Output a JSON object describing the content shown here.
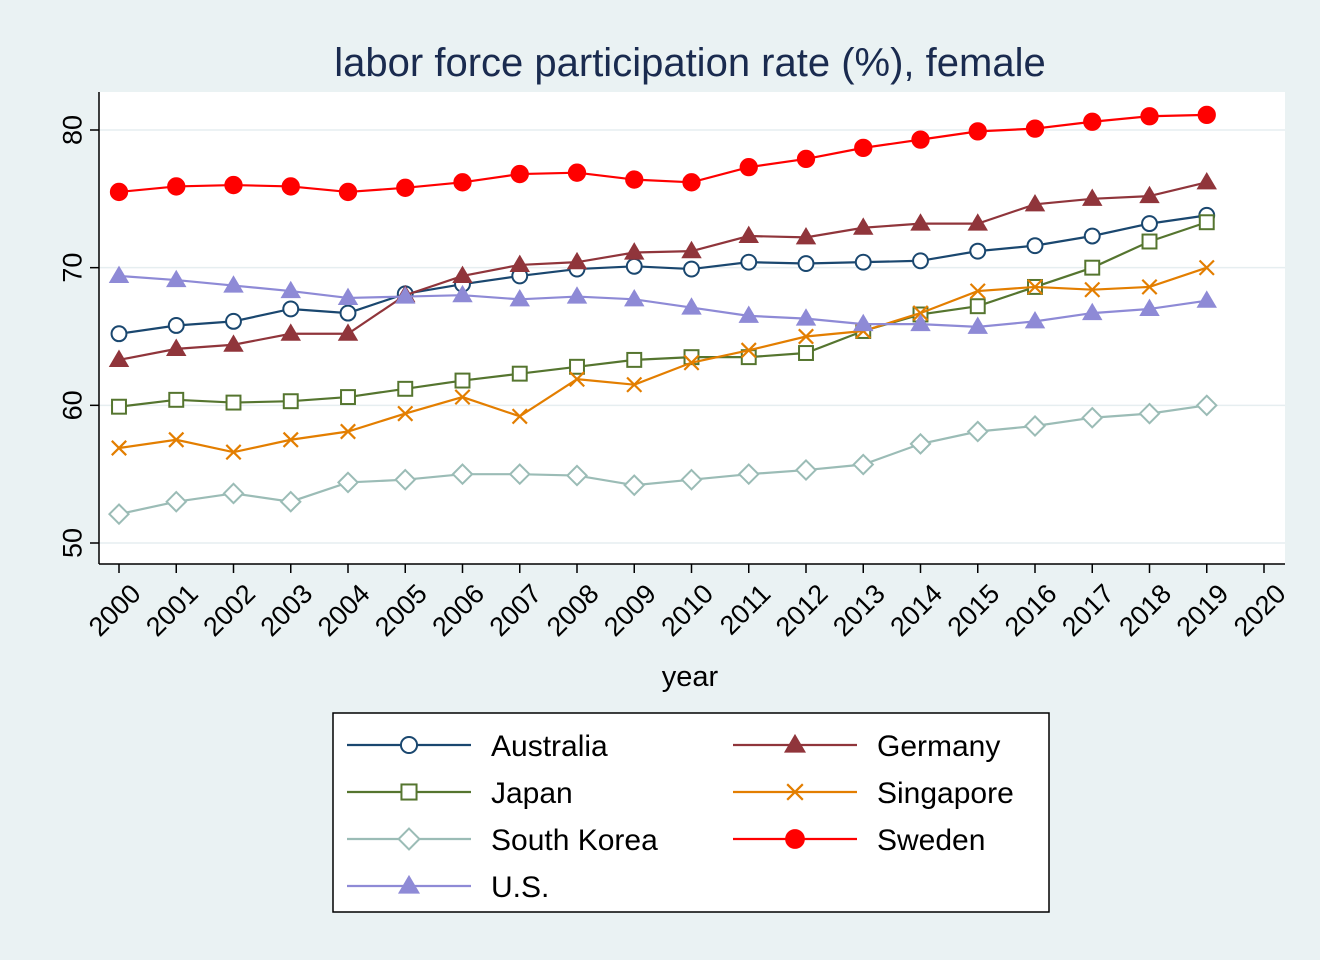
{
  "chart_data": {
    "type": "line",
    "title": "labor force participation rate (%), female",
    "xlabel": "year",
    "ylabel": "",
    "xlim": [
      2000,
      2020
    ],
    "ylim": [
      50,
      82
    ],
    "x_ticks": [
      "2000",
      "2001",
      "2002",
      "2003",
      "2004",
      "2005",
      "2006",
      "2007",
      "2008",
      "2009",
      "2010",
      "2011",
      "2012",
      "2013",
      "2014",
      "2015",
      "2016",
      "2017",
      "2018",
      "2019",
      "2020"
    ],
    "y_ticks": [
      "50",
      "60",
      "70",
      "80"
    ],
    "grid": true,
    "legend_position": "bottom",
    "x": [
      2000,
      2001,
      2002,
      2003,
      2004,
      2005,
      2006,
      2007,
      2008,
      2009,
      2010,
      2011,
      2012,
      2013,
      2014,
      2015,
      2016,
      2017,
      2018,
      2019
    ],
    "series": [
      {
        "name": "Australia",
        "color": "#1a476f",
        "marker": "circle-hollow",
        "values": [
          65.2,
          65.8,
          66.1,
          67.0,
          66.7,
          68.1,
          68.8,
          69.4,
          69.9,
          70.1,
          69.9,
          70.4,
          70.3,
          70.4,
          70.5,
          71.2,
          71.6,
          72.3,
          73.2,
          73.8
        ]
      },
      {
        "name": "Germany",
        "color": "#90353b",
        "marker": "triangle-filled",
        "values": [
          63.3,
          64.1,
          64.4,
          65.2,
          65.2,
          68.0,
          69.4,
          70.2,
          70.4,
          71.1,
          71.2,
          72.3,
          72.2,
          72.9,
          73.2,
          73.2,
          74.6,
          75.0,
          75.2,
          76.2
        ]
      },
      {
        "name": "Japan",
        "color": "#55752f",
        "marker": "square-hollow",
        "values": [
          59.9,
          60.4,
          60.2,
          60.3,
          60.6,
          61.2,
          61.8,
          62.3,
          62.8,
          63.3,
          63.5,
          63.5,
          63.8,
          65.4,
          66.6,
          67.2,
          68.6,
          70.0,
          71.9,
          73.3
        ]
      },
      {
        "name": "Singapore",
        "color": "#e37e00",
        "marker": "x",
        "values": [
          56.9,
          57.5,
          56.6,
          57.5,
          58.1,
          59.4,
          60.6,
          59.2,
          61.9,
          61.5,
          63.1,
          64.0,
          65.0,
          65.4,
          66.7,
          68.3,
          68.6,
          68.4,
          68.6,
          70.0
        ]
      },
      {
        "name": "South Korea",
        "color": "#9bbcb6",
        "marker": "diamond-hollow",
        "values": [
          52.1,
          53.0,
          53.6,
          53.0,
          54.4,
          54.6,
          55.0,
          55.0,
          54.9,
          54.2,
          54.6,
          55.0,
          55.3,
          55.7,
          57.2,
          58.1,
          58.5,
          59.1,
          59.4,
          60.0
        ]
      },
      {
        "name": "Sweden",
        "color": "#ff0000",
        "marker": "circle-filled",
        "values": [
          75.5,
          75.9,
          76.0,
          75.9,
          75.5,
          75.8,
          76.2,
          76.8,
          76.9,
          76.4,
          76.2,
          77.3,
          77.9,
          78.7,
          79.3,
          79.9,
          80.1,
          80.6,
          81.0,
          81.1
        ]
      },
      {
        "name": "U.S.",
        "color": "#8e8ad6",
        "marker": "triangle-filled",
        "values": [
          69.4,
          69.1,
          68.7,
          68.3,
          67.8,
          67.9,
          68.0,
          67.7,
          67.9,
          67.7,
          67.1,
          66.5,
          66.3,
          65.9,
          65.9,
          65.7,
          66.1,
          66.7,
          67.0,
          67.6
        ]
      }
    ],
    "legend_order": [
      "Australia",
      "Germany",
      "Japan",
      "Singapore",
      "South Korea",
      "Sweden",
      "U.S."
    ]
  }
}
